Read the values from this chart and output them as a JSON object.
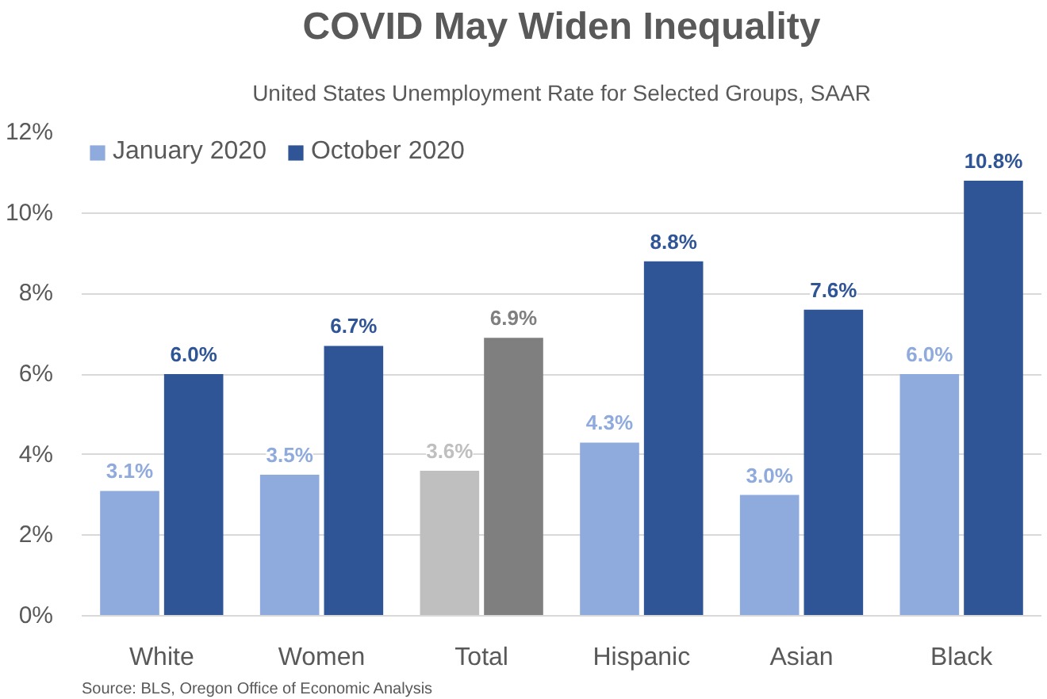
{
  "chart_data": {
    "type": "bar",
    "title": "COVID May Widen Inequality",
    "subtitle": "United States Unemployment Rate for Selected Groups, SAAR",
    "categories": [
      "White",
      "Women",
      "Total",
      "Hispanic",
      "Asian",
      "Black"
    ],
    "series": [
      {
        "name": "January 2020",
        "colors": [
          "#8faadc",
          "#8faadc",
          "#bfbfbf",
          "#8faadc",
          "#8faadc",
          "#8faadc"
        ],
        "values": [
          3.1,
          3.5,
          3.6,
          4.3,
          3.0,
          6.0
        ],
        "value_labels": [
          "3.1%",
          "3.5%",
          "3.6%",
          "4.3%",
          "3.0%",
          "6.0%"
        ]
      },
      {
        "name": "October 2020",
        "colors": [
          "#2f5597",
          "#2f5597",
          "#7f7f7f",
          "#2f5597",
          "#2f5597",
          "#2f5597"
        ],
        "values": [
          6.0,
          6.7,
          6.9,
          8.8,
          7.6,
          10.8
        ],
        "value_labels": [
          "6.0%",
          "6.7%",
          "6.9%",
          "8.8%",
          "7.6%",
          "10.8%"
        ]
      }
    ],
    "ylim": [
      0,
      12
    ],
    "yticks": [
      {
        "value": 0,
        "label": "0%"
      },
      {
        "value": 2,
        "label": "2%"
      },
      {
        "value": 4,
        "label": "4%"
      },
      {
        "value": 6,
        "label": "6%"
      },
      {
        "value": 8,
        "label": "8%"
      },
      {
        "value": 10,
        "label": "10%"
      },
      {
        "value": 12,
        "label": "12%"
      }
    ],
    "grid": "y",
    "legend": "top left",
    "annotations": [
      "Source: BLS, Oregon Office of Economic Analysis"
    ]
  }
}
